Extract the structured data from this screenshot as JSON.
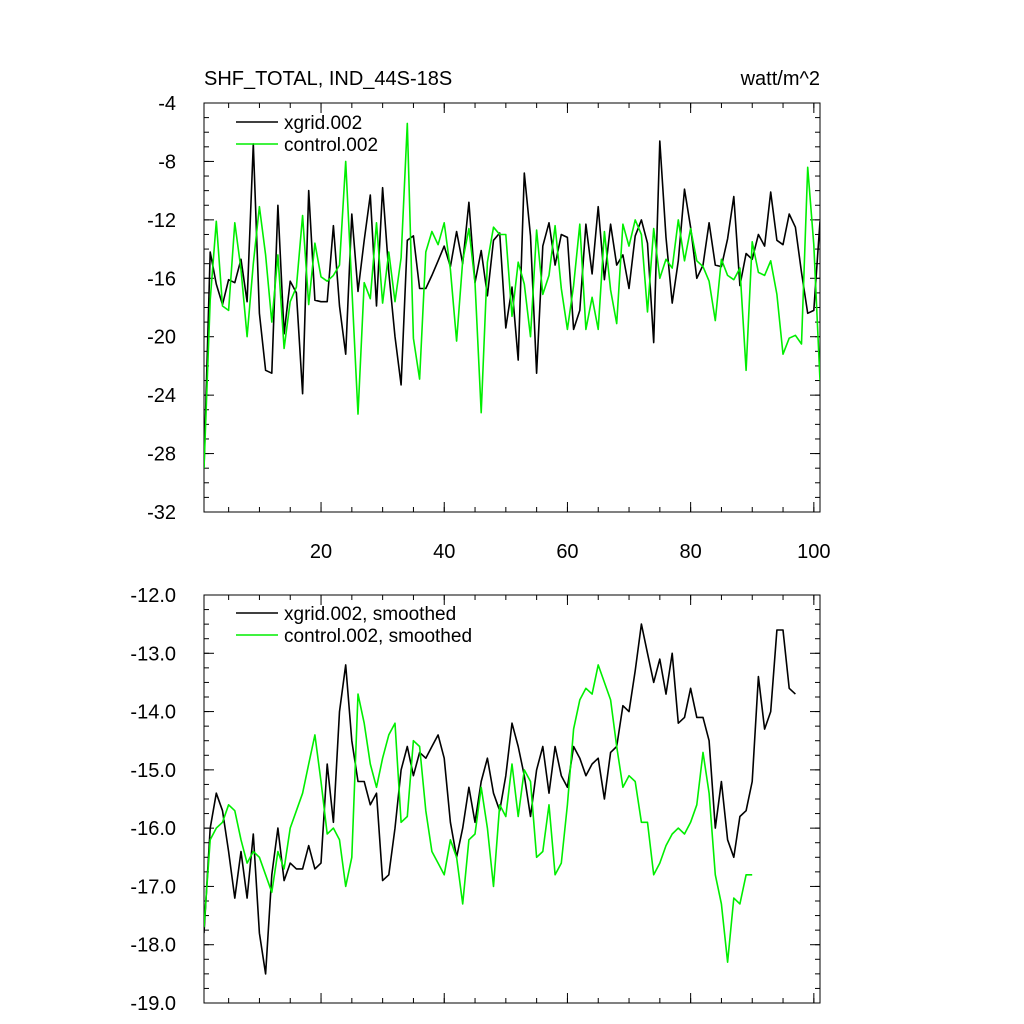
{
  "colors": {
    "xgrid": "#000000",
    "control": "#00ee00"
  },
  "chart_data": [
    {
      "type": "line",
      "title": "SHF_TOTAL, IND_44S-18S",
      "units": "watt/m^2",
      "xlim": [
        1,
        101
      ],
      "ylim": [
        -32,
        -4
      ],
      "yticks": [
        -4,
        -8,
        -12,
        -16,
        -20,
        -24,
        -28,
        -32
      ],
      "ytick_labels": [
        "-4",
        "-8",
        "-12",
        "-16",
        "-20",
        "-24",
        "-28",
        "-32"
      ],
      "xticks": [
        20,
        40,
        60,
        80,
        100
      ],
      "xtick_labels": [
        "20",
        "40",
        "60",
        "80",
        "100"
      ],
      "legend_position": "top-left",
      "series": [
        {
          "name": "xgrid.002",
          "color_key": "xgrid",
          "values": [
            -29.0,
            -14.2,
            -16.4,
            -17.8,
            -16.1,
            -16.3,
            -14.7,
            -17.6,
            -6.8,
            -18.4,
            -22.3,
            -22.5,
            -11.0,
            -19.8,
            -16.2,
            -17.0,
            -23.9,
            -10.0,
            -17.5,
            -17.6,
            -17.6,
            -12.4,
            -17.9,
            -21.2,
            -11.6,
            -16.9,
            -13.4,
            -10.3,
            -17.9,
            -9.8,
            -15.6,
            -20.0,
            -23.3,
            -13.4,
            -13.1,
            -16.7,
            -16.7,
            -15.8,
            -14.8,
            -13.8,
            -15.2,
            -12.8,
            -15.0,
            -10.8,
            -16.3,
            -14.1,
            -17.2,
            -13.4,
            -12.9,
            -19.4,
            -16.6,
            -21.6,
            -8.8,
            -13.1,
            -22.5,
            -13.8,
            -12.2,
            -15.1,
            -13.0,
            -13.2,
            -19.5,
            -18.2,
            -12.3,
            -15.7,
            -11.1,
            -16.1,
            -12.3,
            -15.1,
            -14.4,
            -16.7,
            -13.1,
            -12.0,
            -13.6,
            -20.4,
            -6.6,
            -13.2,
            -17.7,
            -14.8,
            -9.9,
            -12.5,
            -16.0,
            -15.1,
            -12.2,
            -15.1,
            -15.2,
            -13.3,
            -10.4,
            -16.5,
            -14.3,
            -14.7,
            -13.0,
            -13.8,
            -10.1,
            -13.4,
            -13.7,
            -11.6,
            -12.5,
            -15.6,
            -18.4,
            -18.2,
            -12.1
          ]
        },
        {
          "name": "control.002",
          "color_key": "control",
          "values": [
            -29.0,
            -17.5,
            -12.1,
            -17.9,
            -18.2,
            -12.2,
            -15.4,
            -20.0,
            -15.0,
            -11.1,
            -14.4,
            -19.0,
            -14.4,
            -20.8,
            -17.6,
            -16.6,
            -11.7,
            -17.8,
            -13.6,
            -15.9,
            -16.2,
            -15.8,
            -15.1,
            -8.0,
            -16.6,
            -25.3,
            -16.3,
            -17.4,
            -12.2,
            -17.7,
            -14.2,
            -17.6,
            -14.6,
            -5.4,
            -20.1,
            -22.9,
            -14.2,
            -12.8,
            -13.7,
            -12.2,
            -15.4,
            -20.3,
            -14.8,
            -12.6,
            -16.3,
            -25.2,
            -14.9,
            -12.5,
            -13.0,
            -13.0,
            -18.6,
            -14.9,
            -16.4,
            -20.0,
            -12.7,
            -17.1,
            -15.8,
            -12.4,
            -16.7,
            -19.5,
            -16.5,
            -12.3,
            -19.5,
            -17.3,
            -19.5,
            -12.8,
            -16.8,
            -19.1,
            -12.3,
            -13.8,
            -12.0,
            -13.0,
            -18.3,
            -12.6,
            -16.0,
            -14.7,
            -15.3,
            -12.0,
            -14.8,
            -12.6,
            -14.8,
            -15.2,
            -16.2,
            -18.9,
            -14.7,
            -15.8,
            -16.1,
            -15.3,
            -22.3,
            -13.5,
            -15.6,
            -15.8,
            -14.8,
            -17.1,
            -21.2,
            -20.1,
            -19.9,
            -20.5,
            -8.4,
            -13.7,
            -23.0
          ]
        }
      ]
    },
    {
      "type": "line",
      "title": "",
      "xlim": [
        1,
        101
      ],
      "ylim": [
        -19,
        -12
      ],
      "yticks": [
        -12,
        -13,
        -14,
        -15,
        -16,
        -17,
        -18,
        -19
      ],
      "ytick_labels": [
        "-12.0",
        "-13.0",
        "-14.0",
        "-15.0",
        "-16.0",
        "-17.0",
        "-18.0",
        "-19.0"
      ],
      "xticks": [
        20,
        40,
        60,
        80,
        100
      ],
      "xtick_labels": [],
      "legend_position": "top-left",
      "series": [
        {
          "name": "xgrid.002, smoothed",
          "color_key": "xgrid",
          "values": [
            -17.8,
            -16.0,
            -15.4,
            -15.7,
            -16.4,
            -17.2,
            -16.4,
            -17.2,
            -16.1,
            -17.8,
            -18.5,
            -16.8,
            -16.0,
            -16.9,
            -16.6,
            -16.7,
            -16.7,
            -16.3,
            -16.7,
            -16.6,
            -14.9,
            -15.9,
            -14.0,
            -13.2,
            -14.5,
            -15.2,
            -15.2,
            -15.6,
            -15.4,
            -16.9,
            -16.8,
            -16.0,
            -15.0,
            -14.6,
            -15.1,
            -14.7,
            -14.8,
            -14.6,
            -14.4,
            -14.8,
            -15.9,
            -16.5,
            -16.0,
            -15.3,
            -15.9,
            -15.2,
            -14.8,
            -15.4,
            -15.7,
            -15.1,
            -14.2,
            -14.6,
            -15.1,
            -15.8,
            -15.0,
            -14.6,
            -15.4,
            -14.6,
            -15.1,
            -15.3,
            -14.6,
            -14.8,
            -15.1,
            -14.9,
            -14.8,
            -15.5,
            -14.7,
            -14.6,
            -13.9,
            -14.0,
            -13.3,
            -12.5,
            -13.0,
            -13.5,
            -13.1,
            -13.7,
            -13.0,
            -14.2,
            -14.1,
            -13.6,
            -14.1,
            -14.1,
            -14.5,
            -16.0,
            -15.2,
            -16.2,
            -16.5,
            -15.8,
            -15.7,
            -15.2,
            -13.4,
            -14.3,
            -14.0,
            -12.6,
            -12.6,
            -13.6,
            -13.7
          ]
        },
        {
          "name": "control.002, smoothed",
          "color_key": "control",
          "values": [
            -17.7,
            -16.2,
            -16.0,
            -15.9,
            -15.6,
            -15.7,
            -16.2,
            -16.6,
            -16.4,
            -16.5,
            -16.8,
            -17.1,
            -16.4,
            -16.7,
            -16.0,
            -15.7,
            -15.4,
            -14.9,
            -14.4,
            -15.2,
            -16.1,
            -16.0,
            -16.2,
            -17.0,
            -16.5,
            -13.7,
            -14.2,
            -14.9,
            -15.3,
            -14.8,
            -14.4,
            -14.2,
            -15.9,
            -15.8,
            -14.5,
            -14.6,
            -15.7,
            -16.4,
            -16.6,
            -16.8,
            -16.2,
            -16.5,
            -17.3,
            -16.2,
            -16.1,
            -15.3,
            -16.0,
            -17.0,
            -15.6,
            -15.8,
            -14.9,
            -15.8,
            -15.0,
            -15.2,
            -16.5,
            -16.4,
            -15.6,
            -16.8,
            -16.6,
            -15.6,
            -14.3,
            -13.8,
            -13.6,
            -13.7,
            -13.2,
            -13.5,
            -13.8,
            -14.6,
            -15.3,
            -15.1,
            -15.2,
            -15.9,
            -15.9,
            -16.8,
            -16.6,
            -16.3,
            -16.1,
            -16.0,
            -16.1,
            -15.9,
            -15.6,
            -14.7,
            -15.4,
            -16.8,
            -17.3,
            -18.3,
            -17.2,
            -17.3,
            -16.8,
            -16.8
          ]
        }
      ]
    }
  ]
}
